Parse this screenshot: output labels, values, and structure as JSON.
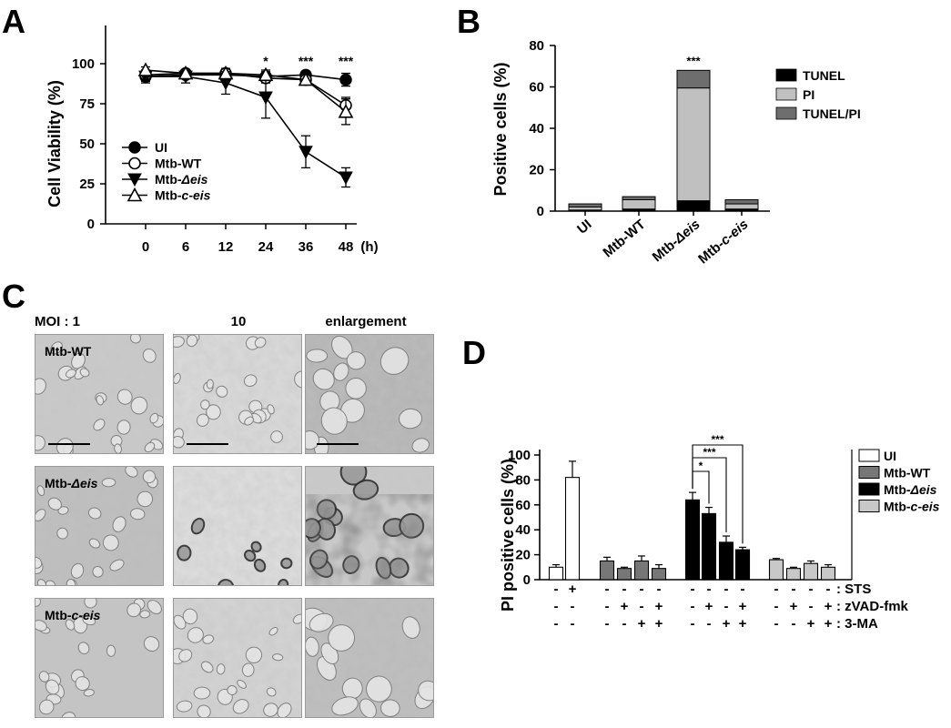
{
  "panels": {
    "a": "A",
    "b": "B",
    "c": "C",
    "d": "D"
  },
  "chart_data": [
    {
      "type": "line",
      "panel": "A",
      "ylabel": "Cell Viability  (%)",
      "xunit": "(h)",
      "x": [
        0,
        6,
        12,
        24,
        36,
        48
      ],
      "x_ticks": [
        "0",
        "6",
        "12",
        "24",
        "36",
        "48"
      ],
      "y_ticks": [
        "0",
        "25",
        "50",
        "75",
        "100"
      ],
      "ylim": [
        0,
        100
      ],
      "series": [
        {
          "name": "UI",
          "marker": "filled-circle",
          "values": [
            92,
            93,
            93,
            92,
            93,
            90
          ],
          "errors": [
            3,
            2,
            2,
            3,
            2,
            4
          ]
        },
        {
          "name": "Mtb-WT",
          "marker": "open-circle",
          "values": [
            93,
            94,
            94,
            91,
            90,
            74
          ],
          "errors": [
            3,
            2,
            3,
            3,
            3,
            5
          ]
        },
        {
          "name": "Mtb-Δeis",
          "marker": "filled-triangle-down",
          "values": [
            92,
            92,
            88,
            79,
            45,
            29
          ],
          "errors": [
            4,
            4,
            7,
            13,
            10,
            6
          ]
        },
        {
          "name": "Mtb-c-eis",
          "marker": "open-triangle-up",
          "values": [
            96,
            94,
            94,
            93,
            90,
            70
          ],
          "errors": [
            2,
            2,
            3,
            3,
            3,
            8
          ]
        }
      ],
      "legend_items": [
        {
          "prefix": "UI",
          "italic": ""
        },
        {
          "prefix": "Mtb-WT",
          "italic": ""
        },
        {
          "prefix": "Mtb-",
          "italic": "Δeis"
        },
        {
          "prefix": "Mtb-",
          "italic": "c-eis"
        }
      ],
      "significance": [
        {
          "x": 24,
          "text": "*"
        },
        {
          "x": 36,
          "text": "***"
        },
        {
          "x": 48,
          "text": "***"
        }
      ]
    },
    {
      "type": "bar",
      "stacked": true,
      "panel": "B",
      "ylabel": "Positive cells  (%)",
      "categories": [
        "UI",
        "Mtb-WT",
        "Mtb-Δeis",
        "Mtb-c-eis"
      ],
      "category_labels": [
        {
          "prefix": "UI",
          "italic": ""
        },
        {
          "prefix": "Mtb-WT",
          "italic": ""
        },
        {
          "prefix": "Mtb-",
          "italic": "Δeis"
        },
        {
          "prefix": "Mtb-",
          "italic": "c-eis"
        }
      ],
      "y_ticks": [
        "0",
        "20",
        "40",
        "60",
        "80"
      ],
      "ylim": [
        0,
        80
      ],
      "series": [
        {
          "name": "TUNEL",
          "color": "#000000",
          "values": [
            0.5,
            1,
            5,
            1
          ]
        },
        {
          "name": "PI",
          "color": "#c0c0c0",
          "values": [
            1.5,
            4.5,
            54.5,
            2.5
          ]
        },
        {
          "name": "TUNEL/PI",
          "color": "#6e6e6e",
          "values": [
            1.5,
            1.5,
            8.5,
            2
          ]
        }
      ],
      "significance": [
        {
          "category": "Mtb-Δeis",
          "text": "***"
        }
      ]
    },
    {
      "type": "bar",
      "panel": "D",
      "ylabel": "PI positive cells (%)",
      "y_ticks": [
        "0",
        "20",
        "40",
        "60",
        "80",
        "100"
      ],
      "ylim": [
        0,
        100
      ],
      "groups": [
        {
          "name": "UI",
          "color": "#ffffff",
          "values": [
            10,
            82
          ],
          "errors": [
            2,
            13
          ]
        },
        {
          "name": "Mtb-WT",
          "color": "#777777",
          "values": [
            15,
            9,
            15,
            9
          ],
          "errors": [
            3,
            1,
            4,
            3
          ]
        },
        {
          "name": "Mtb-Δeis",
          "color": "#000000",
          "values": [
            64,
            53,
            30,
            24
          ],
          "errors": [
            6,
            5,
            5,
            2
          ]
        },
        {
          "name": "Mtb-c-eis",
          "color": "#c8c8c8",
          "values": [
            16,
            9,
            13,
            10
          ],
          "errors": [
            1,
            1,
            2,
            2
          ]
        }
      ],
      "legend_items": [
        {
          "prefix": "UI",
          "italic": ""
        },
        {
          "prefix": "Mtb-WT",
          "italic": ""
        },
        {
          "prefix": "Mtb-",
          "italic": "Δeis"
        },
        {
          "prefix": "Mtb-",
          "italic": "c-eis"
        }
      ],
      "treatments": [
        {
          "label": ": STS",
          "marks": [
            "-",
            "+",
            "-",
            "-",
            "-",
            "-",
            "-",
            "-",
            "-",
            "-",
            "-",
            "-",
            "-",
            "-"
          ]
        },
        {
          "label": ": zVAD-fmk",
          "marks": [
            "-",
            "-",
            "-",
            "+",
            "-",
            "+",
            "-",
            "+",
            "-",
            "+",
            "-",
            "+",
            "-",
            "+"
          ]
        },
        {
          "label": ": 3-MA",
          "marks": [
            "-",
            "-",
            "-",
            "-",
            "+",
            "+",
            "-",
            "-",
            "+",
            "+",
            "-",
            "-",
            "+",
            "+"
          ]
        }
      ],
      "significance": [
        {
          "from": 0,
          "to": 1,
          "text": "*"
        },
        {
          "from": 0,
          "to": 2,
          "text": "***"
        },
        {
          "from": 0,
          "to": 3,
          "text": "***"
        }
      ]
    }
  ],
  "micrographs": {
    "column_headers": [
      "MOI : 1",
      "10",
      "enlargement"
    ],
    "row_labels": [
      {
        "prefix": "Mtb-WT",
        "italic": ""
      },
      {
        "prefix": "Mtb-",
        "italic": "Δeis"
      },
      {
        "prefix": "Mtb-",
        "italic": "c-eis"
      }
    ]
  }
}
